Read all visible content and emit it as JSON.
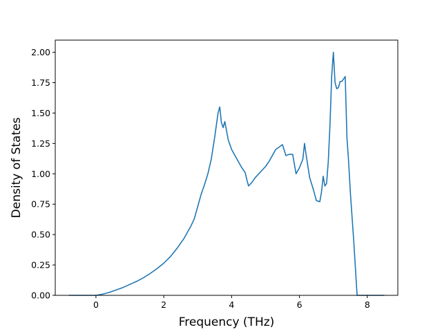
{
  "chart_data": {
    "type": "line",
    "xlabel": "Frequency (THz)",
    "ylabel": "Density of States",
    "xlim": [
      -1.2,
      8.9
    ],
    "ylim": [
      0,
      2.1
    ],
    "xticks": [
      0,
      2,
      4,
      6,
      8
    ],
    "yticks": [
      0.0,
      0.25,
      0.5,
      0.75,
      1.0,
      1.25,
      1.5,
      1.75,
      2.0
    ],
    "xtick_labels": [
      "0",
      "2",
      "4",
      "6",
      "8"
    ],
    "ytick_labels": [
      "0.00",
      "0.25",
      "0.50",
      "0.75",
      "1.00",
      "1.25",
      "1.50",
      "1.75",
      "2.00"
    ],
    "grid": false,
    "line_color": "#1f77b4",
    "series": [
      {
        "x": [
          -0.8,
          -0.4,
          0.0,
          0.2,
          0.4,
          0.6,
          0.8,
          1.0,
          1.2,
          1.4,
          1.6,
          1.8,
          2.0,
          2.2,
          2.4,
          2.6,
          2.8,
          2.9,
          3.0,
          3.1,
          3.2,
          3.3,
          3.4,
          3.5,
          3.6,
          3.65,
          3.7,
          3.75,
          3.8,
          3.9,
          4.0,
          4.1,
          4.2,
          4.3,
          4.4,
          4.45,
          4.5,
          4.6,
          4.7,
          4.8,
          4.9,
          5.0,
          5.1,
          5.2,
          5.3,
          5.4,
          5.5,
          5.6,
          5.7,
          5.8,
          5.9,
          6.0,
          6.1,
          6.15,
          6.2,
          6.3,
          6.4,
          6.5,
          6.6,
          6.65,
          6.7,
          6.75,
          6.8,
          6.85,
          6.9,
          6.95,
          7.0,
          7.05,
          7.1,
          7.15,
          7.2,
          7.25,
          7.3,
          7.35,
          7.4,
          7.45,
          7.5,
          7.6,
          7.7,
          7.75,
          7.8,
          8.0,
          8.2,
          8.5
        ],
        "y": [
          0.0,
          0.0,
          0.0,
          0.01,
          0.025,
          0.045,
          0.065,
          0.09,
          0.115,
          0.145,
          0.18,
          0.22,
          0.265,
          0.32,
          0.39,
          0.47,
          0.57,
          0.63,
          0.73,
          0.83,
          0.91,
          1.0,
          1.12,
          1.3,
          1.5,
          1.55,
          1.42,
          1.38,
          1.43,
          1.28,
          1.2,
          1.15,
          1.1,
          1.05,
          1.01,
          0.95,
          0.9,
          0.93,
          0.97,
          1.0,
          1.03,
          1.06,
          1.1,
          1.15,
          1.2,
          1.22,
          1.24,
          1.15,
          1.16,
          1.16,
          1.0,
          1.05,
          1.12,
          1.25,
          1.15,
          0.97,
          0.88,
          0.78,
          0.77,
          0.85,
          0.98,
          0.9,
          0.92,
          1.1,
          1.4,
          1.8,
          2.0,
          1.75,
          1.7,
          1.71,
          1.76,
          1.76,
          1.78,
          1.8,
          1.3,
          1.1,
          0.85,
          0.45,
          0.0,
          0.0,
          0.0,
          0.0,
          0.0,
          0.0
        ]
      }
    ]
  }
}
